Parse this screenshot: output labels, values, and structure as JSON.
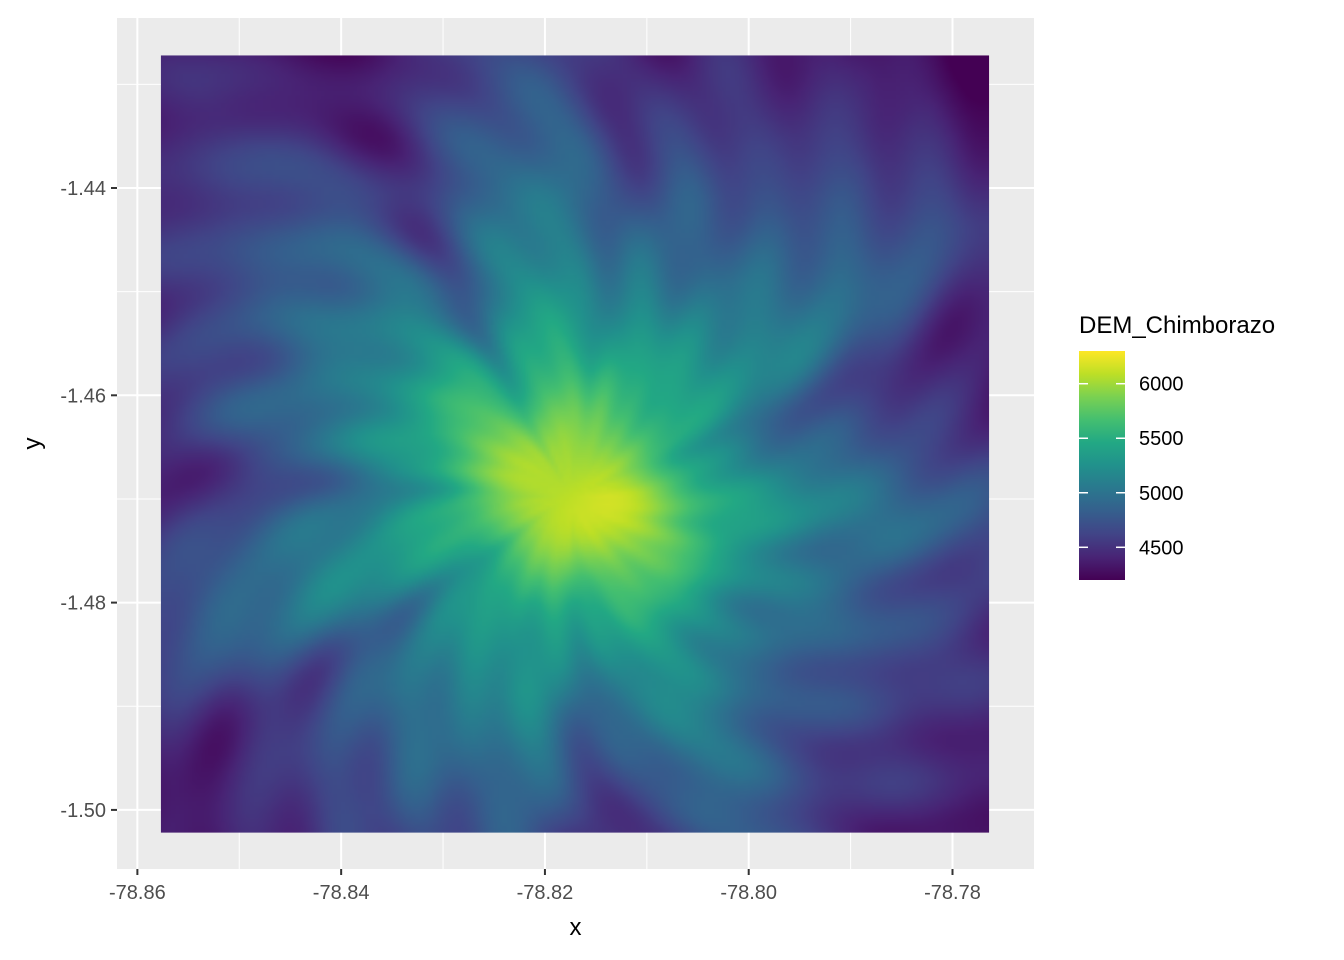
{
  "chart_data": {
    "type": "heatmap",
    "title": "",
    "xlabel": "x",
    "ylabel": "y",
    "xlim": [
      -78.862,
      -78.772
    ],
    "ylim": [
      -1.5057,
      -1.4236
    ],
    "raster_extent": {
      "x": [
        -78.8577,
        -78.7764
      ],
      "y": [
        -1.5022,
        -1.4272
      ]
    },
    "x_ticks": [
      -78.86,
      -78.84,
      -78.82,
      -78.8,
      -78.78
    ],
    "x_tick_labels": [
      "-78.86",
      "-78.84",
      "-78.82",
      "-78.80",
      "-78.78"
    ],
    "y_ticks": [
      -1.44,
      -1.46,
      -1.48,
      -1.5
    ],
    "y_tick_labels": [
      "-1.44",
      "-1.46",
      "-1.48",
      "-1.50"
    ],
    "grid": true,
    "background": "#ebebeb",
    "grid_color": "#ffffff",
    "colorscale": "viridis",
    "colorscale_stops": [
      "#440154",
      "#482475",
      "#414487",
      "#355f8d",
      "#2a788e",
      "#21918c",
      "#22a884",
      "#44bf70",
      "#7ad151",
      "#bddf26",
      "#fde725"
    ],
    "value_range": [
      4200,
      6300
    ],
    "peak": {
      "x": -78.8175,
      "y": -1.4697,
      "value": 6300
    },
    "legend": {
      "title": "DEM_Chimborazo",
      "placement": "right",
      "breaks": [
        6000,
        5500,
        5000,
        4500
      ],
      "labels": [
        "6000",
        "5500",
        "5000",
        "4500"
      ]
    }
  }
}
